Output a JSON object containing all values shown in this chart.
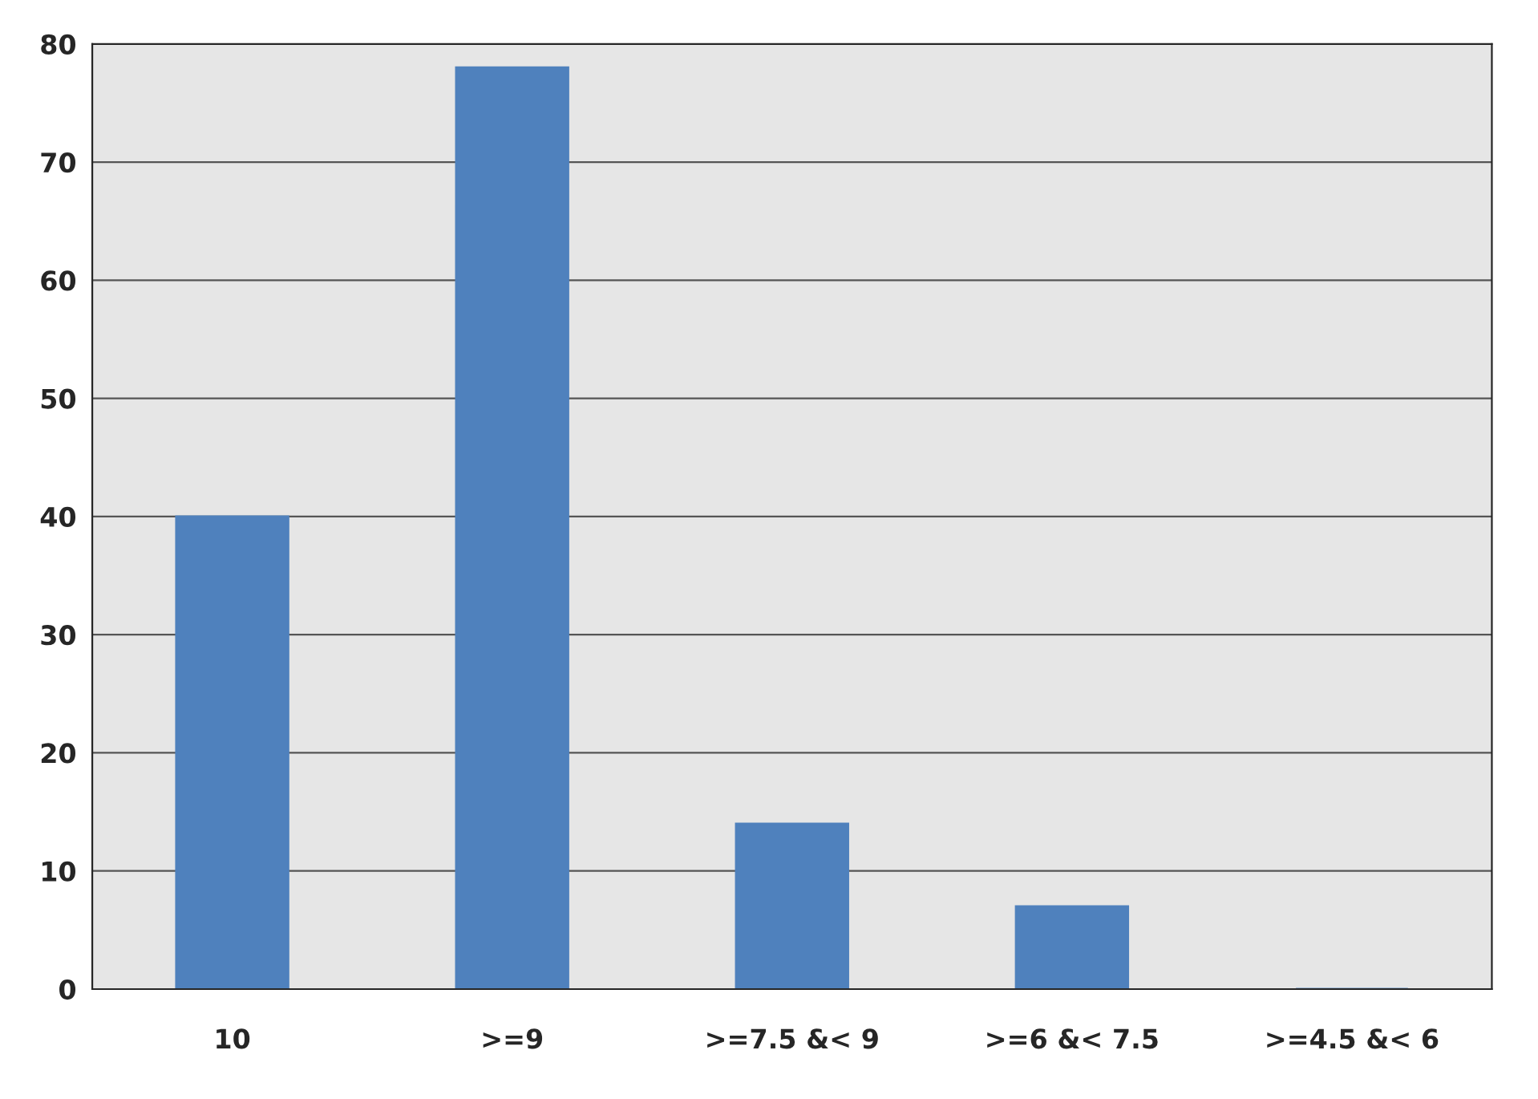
{
  "chart_data": {
    "type": "bar",
    "categories": [
      "10",
      ">=9",
      ">=7.5 &< 9",
      ">=6 &< 7.5",
      ">=4.5 &< 6"
    ],
    "values": [
      40,
      78,
      14,
      7,
      0
    ],
    "color": "#4f81bd",
    "ylim": [
      0,
      80
    ],
    "yticks": [
      0,
      10,
      20,
      30,
      40,
      50,
      60,
      70,
      80
    ],
    "grid": "y",
    "legend": false
  }
}
